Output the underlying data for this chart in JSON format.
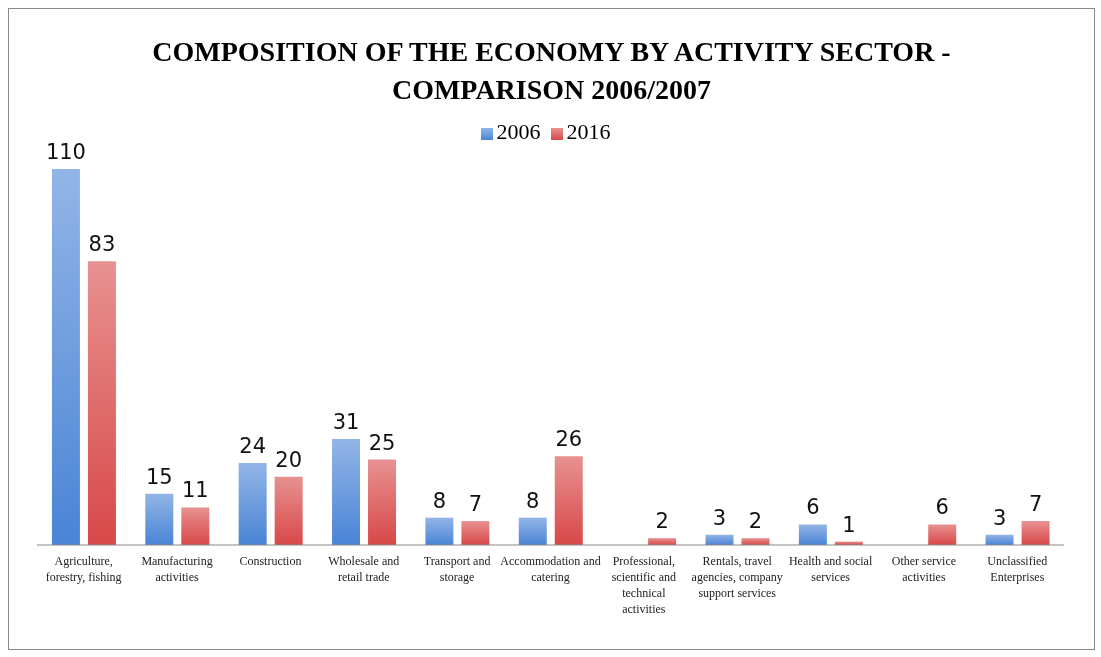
{
  "chart_data": {
    "type": "bar",
    "title": "COMPOSITION OF THE ECONOMY BY ACTIVITY SECTOR - COMPARISON 2006/2007",
    "categories": [
      "Agriculture, forestry, fishing",
      "Manufacturing activities",
      "Construction",
      "Wholesale and retail trade",
      "Transport and storage",
      "Accommodation and catering",
      "Professional, scientific and technical activities",
      "Rentals, travel agencies, company support services",
      "Health and social services",
      "Other service activities",
      "Unclassified Enterprises"
    ],
    "series": [
      {
        "name": "2006",
        "color": "#4a84d6",
        "values": [
          110,
          15,
          24,
          31,
          8,
          8,
          null,
          3,
          6,
          null,
          3
        ]
      },
      {
        "name": "2016",
        "color": "#d84848",
        "values": [
          83,
          11,
          20,
          25,
          7,
          26,
          2,
          2,
          1,
          6,
          7
        ]
      }
    ],
    "data_labels": true,
    "legend": "top",
    "grid": false
  }
}
